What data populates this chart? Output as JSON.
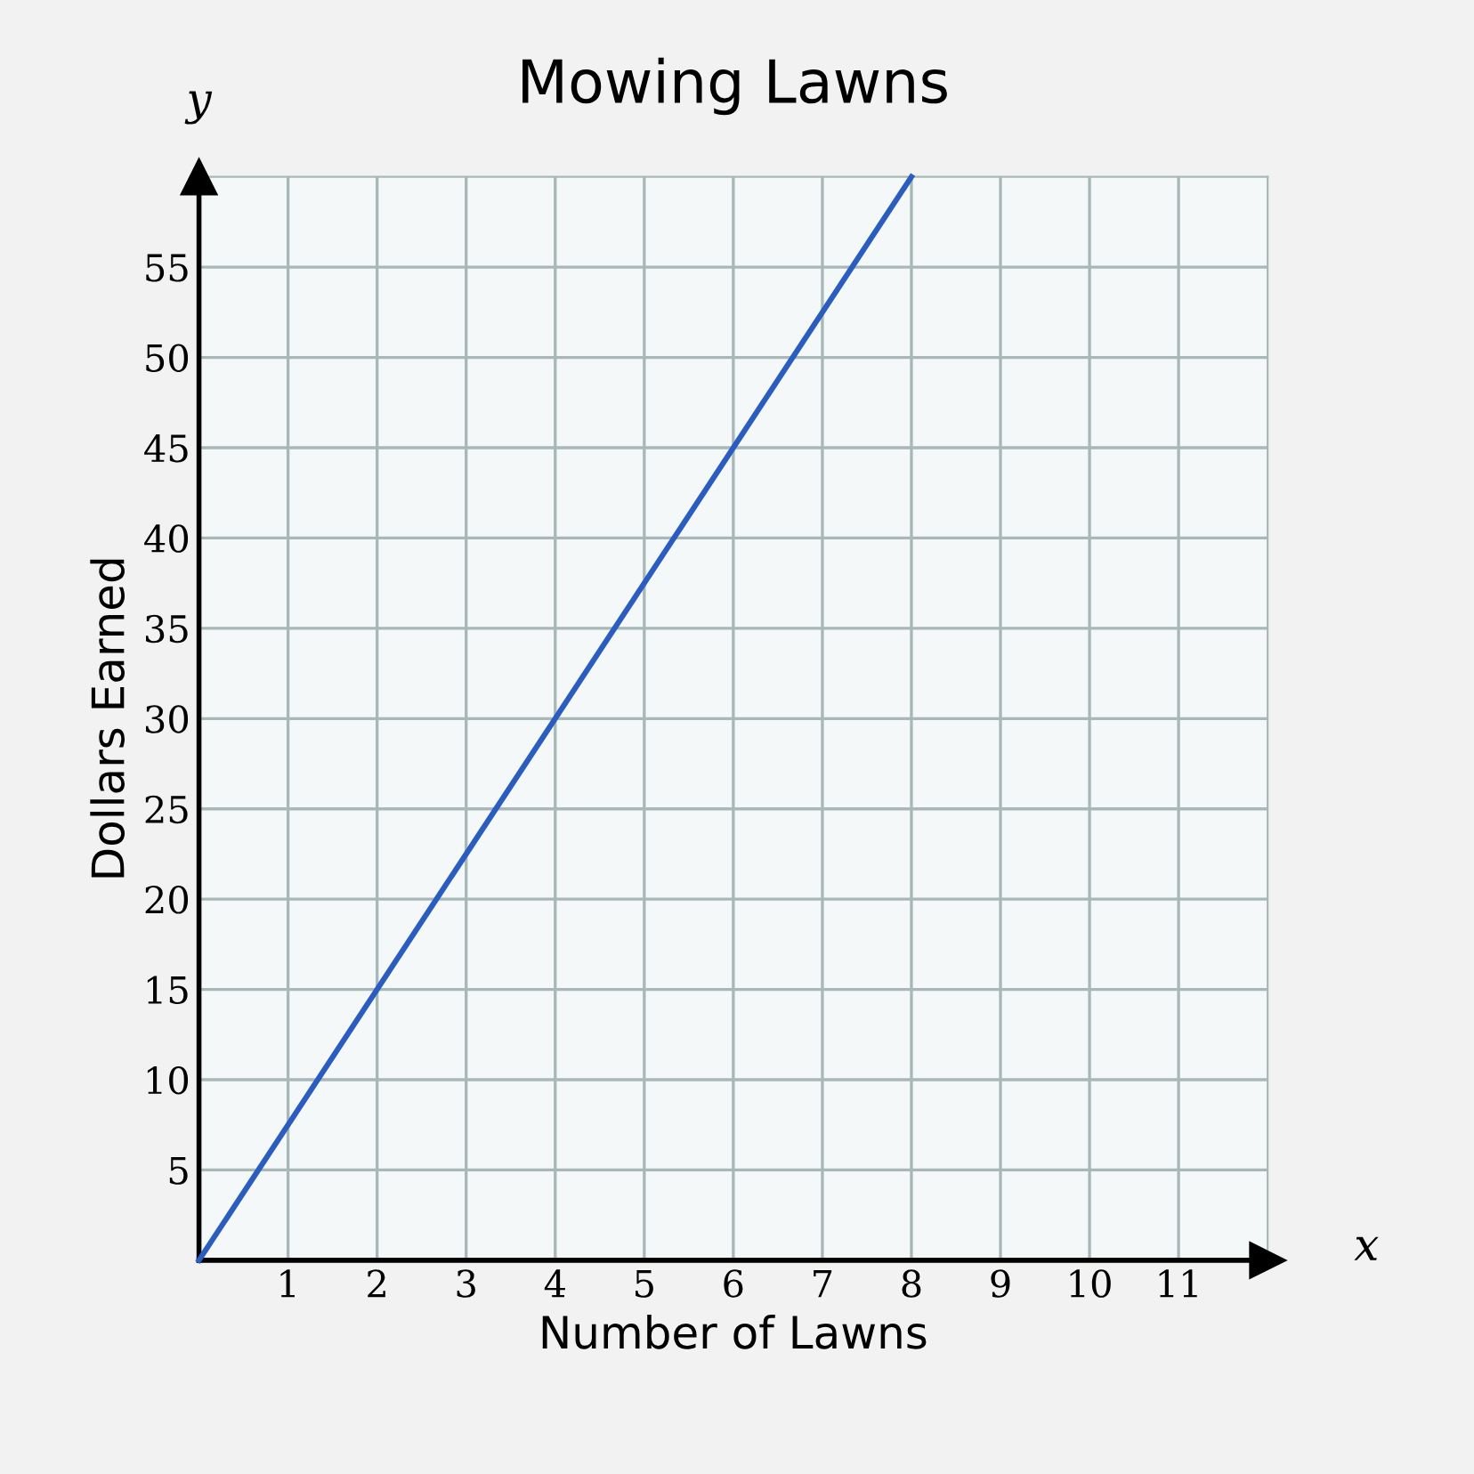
{
  "chart_data": {
    "type": "line",
    "title": "Mowing Lawns",
    "xlabel": "Number of Lawns",
    "ylabel": "Dollars Earned",
    "annotations": [
      "y",
      "x"
    ],
    "x": [
      0,
      8
    ],
    "series": [
      {
        "color": "#2a5dbf",
        "values": [
          0,
          60
        ]
      }
    ],
    "xlim": [
      0,
      12
    ],
    "ylim": [
      0,
      60
    ],
    "xticks": [
      1,
      2,
      3,
      4,
      5,
      6,
      7,
      8,
      9,
      10,
      11
    ],
    "yticks": [
      5,
      10,
      15,
      20,
      25,
      30,
      35,
      40,
      45,
      50,
      55
    ],
    "grid": true,
    "marker": "none",
    "line_style": "solid"
  }
}
